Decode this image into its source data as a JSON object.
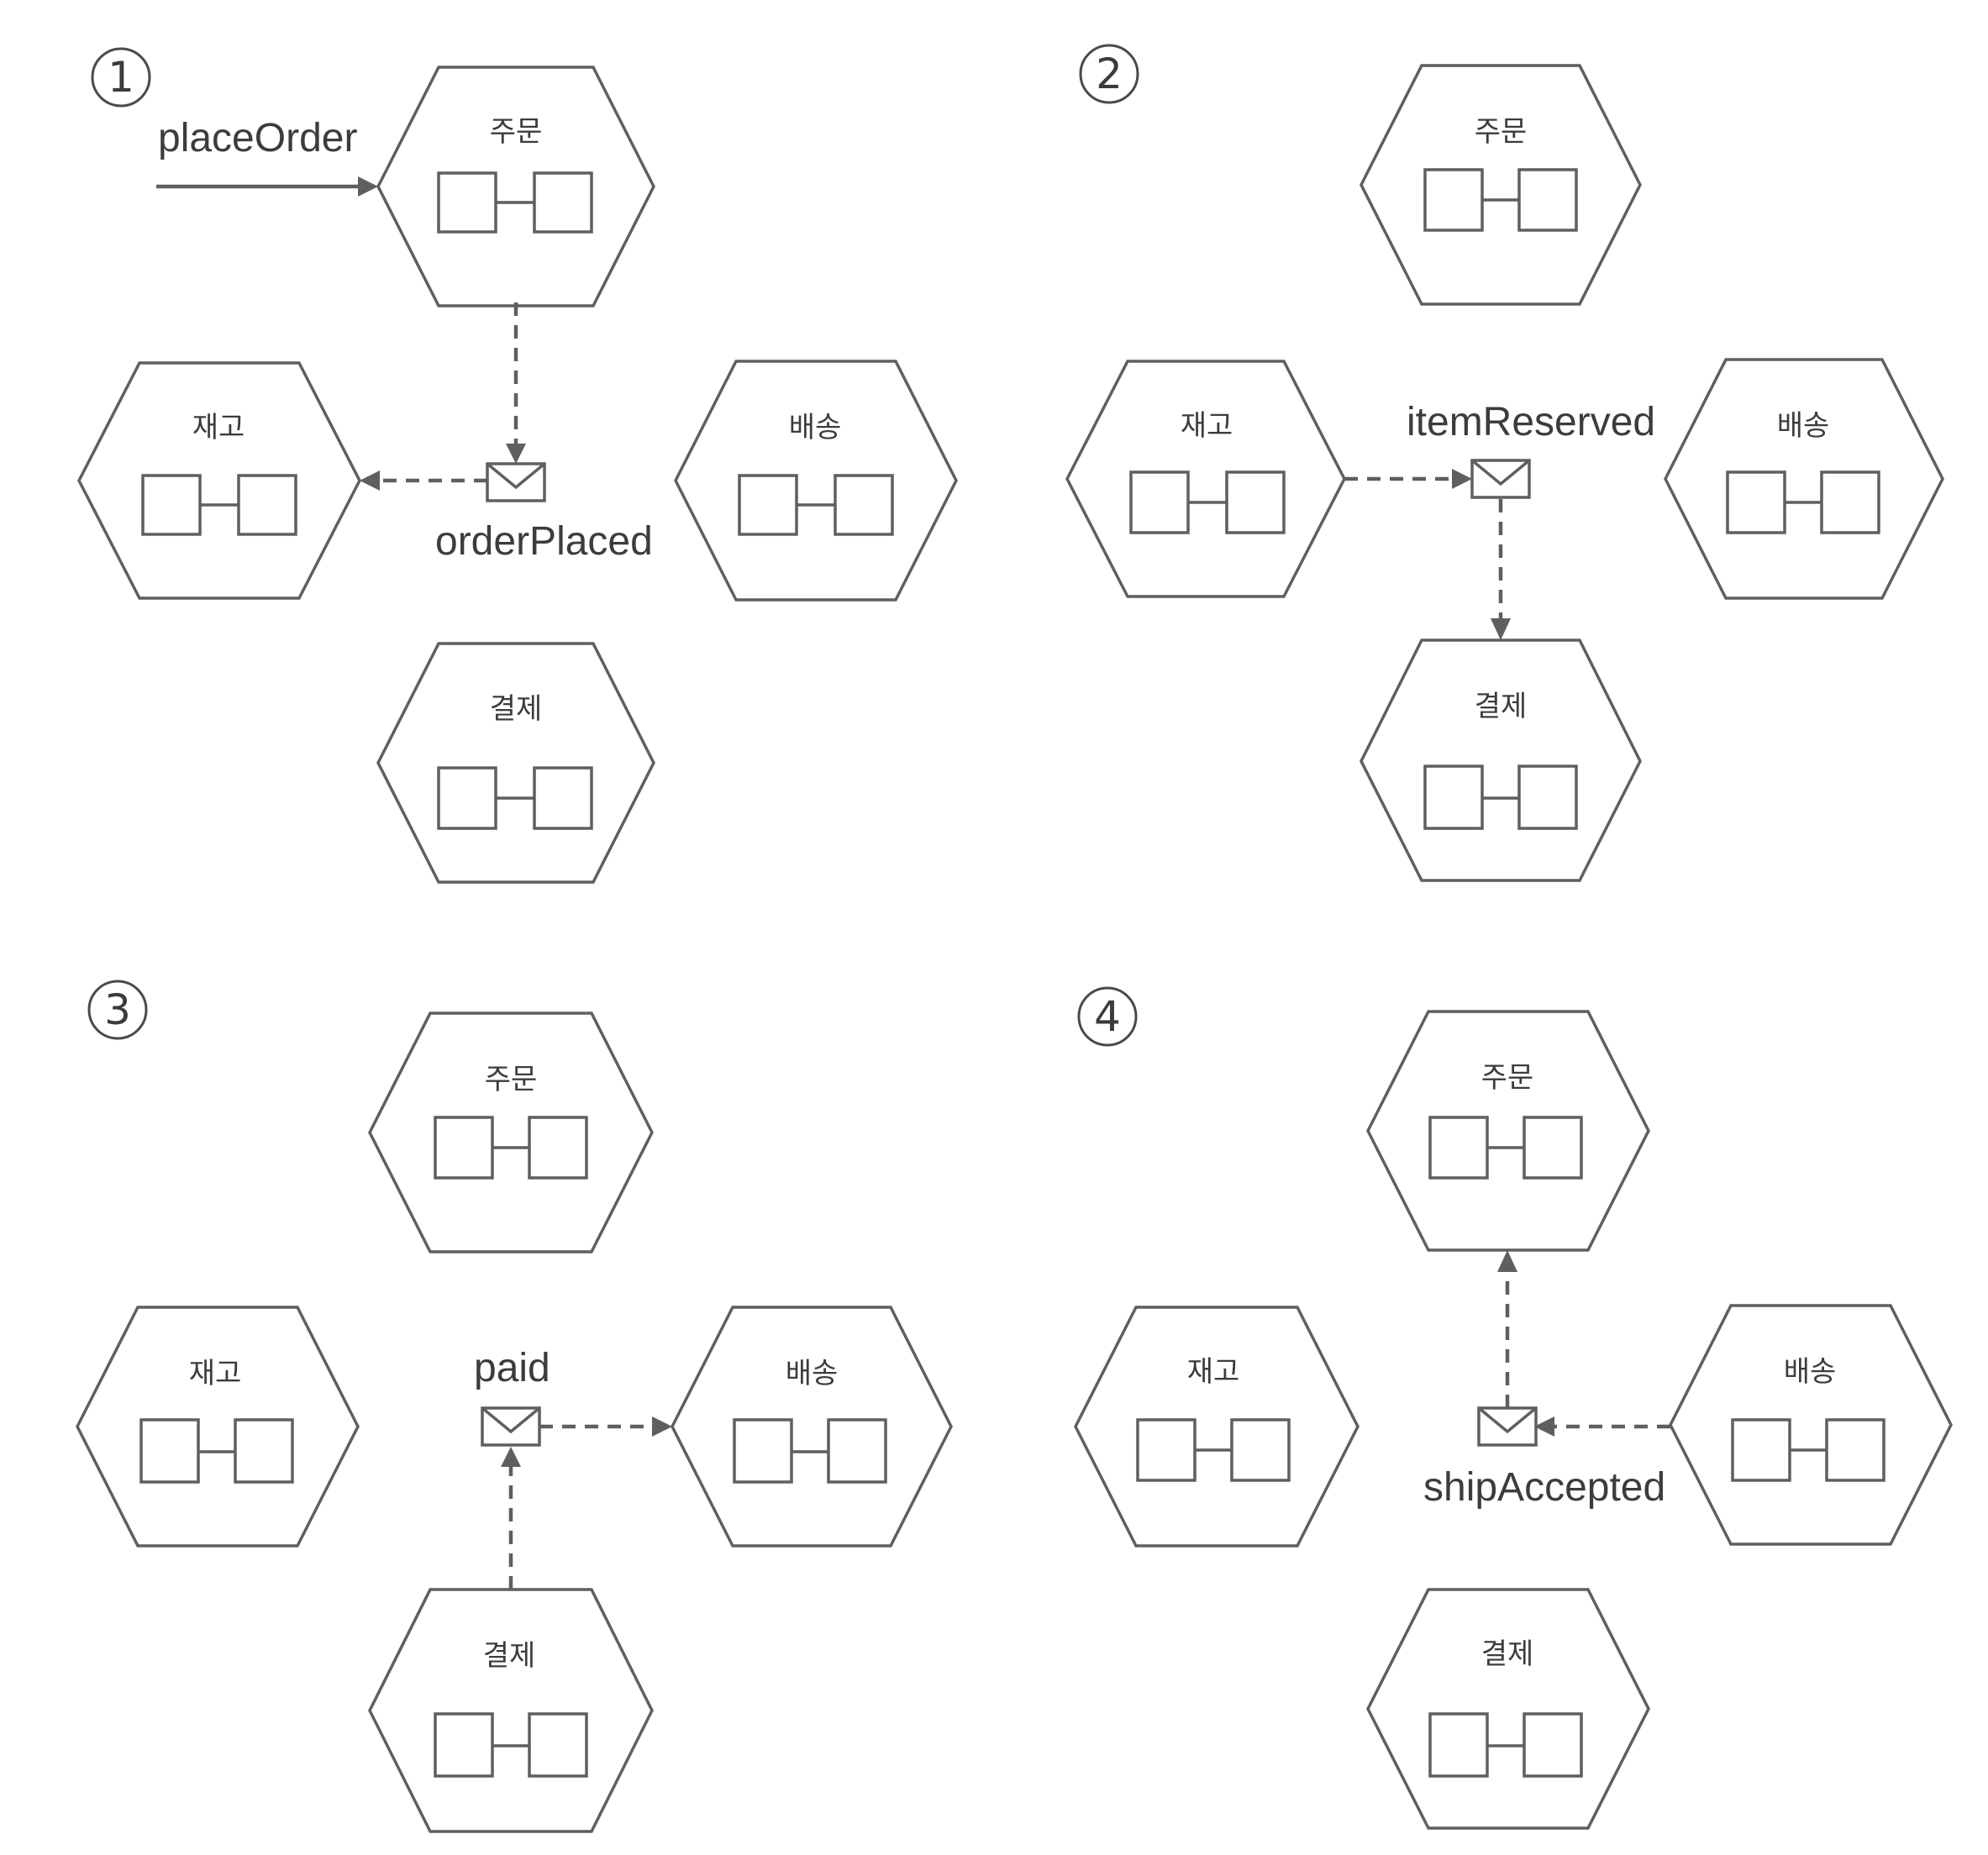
{
  "services": {
    "order": "주문",
    "inventory": "재고",
    "shipping": "배송",
    "payment": "결제"
  },
  "steps": [
    {
      "number": "1",
      "command": "placeOrder",
      "event": "orderPlaced",
      "flow": "order-to-inventory"
    },
    {
      "number": "2",
      "event": "itemReserved",
      "flow": "inventory-to-payment"
    },
    {
      "number": "3",
      "event": "paid",
      "flow": "payment-to-shipping"
    },
    {
      "number": "4",
      "event": "shipAccepted",
      "flow": "shipping-to-order"
    }
  ]
}
